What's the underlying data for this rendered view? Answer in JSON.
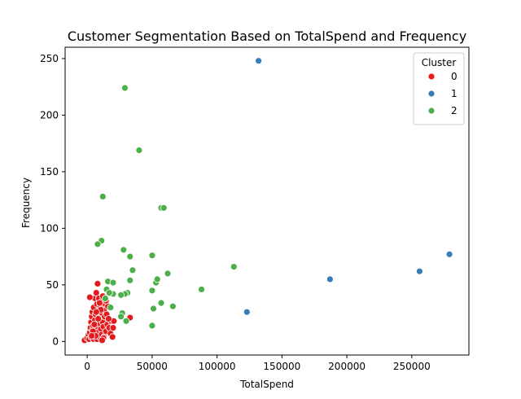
{
  "chart_data": {
    "type": "scatter",
    "title": "Customer Segmentation Based on TotalSpend and Frequency",
    "xlabel": "TotalSpend",
    "ylabel": "Frequency",
    "xlim": [
      -17000,
      294000
    ],
    "ylim": [
      -12,
      260
    ],
    "xticks": [
      0,
      50000,
      100000,
      150000,
      200000,
      250000
    ],
    "xtick_labels": [
      "0",
      "50000",
      "100000",
      "150000",
      "200000",
      "250000"
    ],
    "yticks": [
      0,
      50,
      100,
      150,
      200,
      250
    ],
    "ytick_labels": [
      "0",
      "50",
      "100",
      "150",
      "200",
      "250"
    ],
    "grid": false,
    "legend": {
      "title": "Cluster",
      "placement": "top-right"
    },
    "colors": {
      "0": "#e41a1c",
      "1": "#377eb8",
      "2": "#4daf4a"
    },
    "series": [
      {
        "name": "0",
        "color": "#e41a1c",
        "points": [
          [
            -2000,
            1
          ],
          [
            0,
            3
          ],
          [
            1000,
            6
          ],
          [
            1500,
            2
          ],
          [
            2000,
            8
          ],
          [
            2500,
            12
          ],
          [
            3000,
            4
          ],
          [
            3000,
            17
          ],
          [
            3500,
            22
          ],
          [
            4000,
            10
          ],
          [
            4000,
            26
          ],
          [
            4500,
            14
          ],
          [
            5000,
            2
          ],
          [
            5000,
            30
          ],
          [
            5500,
            6
          ],
          [
            6000,
            19
          ],
          [
            6000,
            38
          ],
          [
            6500,
            24
          ],
          [
            7000,
            12
          ],
          [
            7000,
            43
          ],
          [
            7500,
            2
          ],
          [
            7500,
            33
          ],
          [
            8000,
            51
          ],
          [
            8000,
            8
          ],
          [
            8500,
            27
          ],
          [
            9000,
            16
          ],
          [
            9000,
            38
          ],
          [
            9500,
            4
          ],
          [
            10000,
            21
          ],
          [
            10000,
            31
          ],
          [
            10500,
            11
          ],
          [
            11000,
            35
          ],
          [
            11000,
            6
          ],
          [
            11500,
            25
          ],
          [
            12000,
            17
          ],
          [
            12000,
            40
          ],
          [
            12500,
            13
          ],
          [
            13000,
            28
          ],
          [
            13000,
            4
          ],
          [
            13500,
            22
          ],
          [
            14000,
            33
          ],
          [
            14500,
            9
          ],
          [
            15000,
            24
          ],
          [
            15500,
            15
          ],
          [
            16000,
            31
          ],
          [
            17000,
            12
          ],
          [
            18000,
            7
          ],
          [
            18500,
            18
          ],
          [
            19500,
            4
          ],
          [
            20000,
            12
          ],
          [
            20500,
            18
          ],
          [
            33000,
            21
          ],
          [
            2000,
            39
          ],
          [
            4500,
            9
          ],
          [
            6500,
            5
          ],
          [
            8500,
            20
          ],
          [
            10500,
            28
          ],
          [
            12500,
            3
          ],
          [
            5500,
            15
          ],
          [
            3500,
            5
          ],
          [
            9500,
            34
          ],
          [
            11500,
            1
          ],
          [
            7000,
            26
          ],
          [
            16500,
            20
          ],
          [
            14500,
            36
          ]
        ]
      },
      {
        "name": "1",
        "color": "#377eb8",
        "points": [
          [
            132000,
            248
          ],
          [
            123000,
            26
          ],
          [
            187000,
            55
          ],
          [
            256000,
            62
          ],
          [
            279000,
            77
          ]
        ]
      },
      {
        "name": "2",
        "color": "#4daf4a",
        "points": [
          [
            29000,
            224
          ],
          [
            40000,
            169
          ],
          [
            12000,
            128
          ],
          [
            57000,
            118
          ],
          [
            59000,
            118
          ],
          [
            11000,
            89
          ],
          [
            8000,
            86
          ],
          [
            28000,
            81
          ],
          [
            33000,
            75
          ],
          [
            50000,
            76
          ],
          [
            113000,
            66
          ],
          [
            35000,
            63
          ],
          [
            62000,
            60
          ],
          [
            33000,
            54
          ],
          [
            53000,
            52
          ],
          [
            54000,
            55
          ],
          [
            16000,
            53
          ],
          [
            20000,
            52
          ],
          [
            88000,
            46
          ],
          [
            50000,
            45
          ],
          [
            31000,
            43
          ],
          [
            29000,
            42
          ],
          [
            26000,
            41
          ],
          [
            20000,
            42
          ],
          [
            15000,
            46
          ],
          [
            17000,
            43
          ],
          [
            14000,
            38
          ],
          [
            18000,
            30
          ],
          [
            57000,
            34
          ],
          [
            66000,
            31
          ],
          [
            51000,
            29
          ],
          [
            27000,
            25
          ],
          [
            26000,
            22
          ],
          [
            30000,
            18
          ],
          [
            50000,
            14
          ]
        ]
      }
    ]
  }
}
